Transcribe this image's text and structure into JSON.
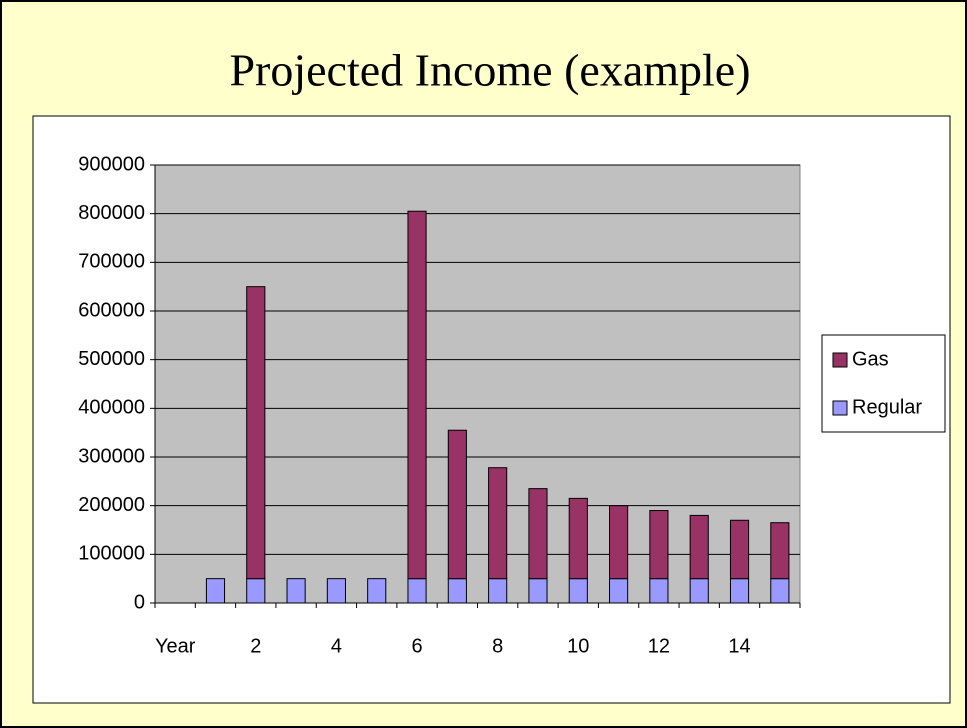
{
  "chart_data": {
    "type": "stacked_bar",
    "title": "Projected Income (example)",
    "categories": [
      "Year",
      null,
      "2",
      null,
      "4",
      null,
      "6",
      null,
      "8",
      null,
      "10",
      null,
      "12",
      null,
      "14",
      null
    ],
    "series": [
      {
        "name": "Regular",
        "color": "#9999ff",
        "values": [
          null,
          50000,
          50000,
          50000,
          50000,
          50000,
          50000,
          50000,
          50000,
          50000,
          50000,
          50000,
          50000,
          50000,
          50000,
          50000
        ]
      },
      {
        "name": "Gas",
        "color": "#993366",
        "values": [
          null,
          null,
          600000,
          null,
          null,
          null,
          755000,
          305000,
          228000,
          185000,
          165000,
          150000,
          140000,
          130000,
          120000,
          115000
        ]
      }
    ],
    "ylim": [
      0,
      900000
    ],
    "yticks": [
      0,
      100000,
      200000,
      300000,
      400000,
      500000,
      600000,
      700000,
      800000,
      900000
    ],
    "grid": true,
    "legend": "right",
    "plot_background": "#c0c0c0"
  }
}
